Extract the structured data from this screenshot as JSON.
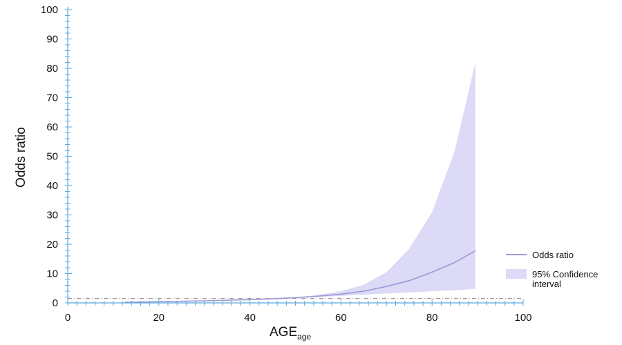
{
  "chart_data": {
    "type": "line",
    "title": "",
    "xlabel": "AGE",
    "xlabel_subscript": "age",
    "ylabel": "Odds ratio",
    "xlim": [
      0,
      100
    ],
    "ylim": [
      0,
      100
    ],
    "x_ticks": [
      0,
      20,
      40,
      60,
      80,
      100
    ],
    "y_ticks": [
      0,
      10,
      20,
      30,
      40,
      50,
      60,
      70,
      80,
      90,
      100
    ],
    "reference_line": 1.5,
    "legend_position": "right",
    "grid": false,
    "series": [
      {
        "name": "Odds ratio",
        "color": "#9b98d8",
        "x": [
          12.5,
          20,
          30,
          40,
          45,
          50,
          55,
          60,
          65,
          70,
          75,
          80,
          85,
          89.5
        ],
        "y": [
          0.2,
          0.4,
          0.7,
          1.1,
          1.4,
          1.8,
          2.3,
          3.0,
          4.0,
          5.6,
          7.6,
          10.5,
          13.8,
          17.8
        ]
      }
    ],
    "confidence_band": {
      "name": "95% Confidence interval",
      "color": "#dcdaf6",
      "x": [
        12.5,
        20,
        30,
        40,
        45,
        50,
        55,
        60,
        65,
        70,
        75,
        80,
        85,
        89.5
      ],
      "lower": [
        0.1,
        0.3,
        0.6,
        1.0,
        1.3,
        1.7,
        2.0,
        2.4,
        2.8,
        3.2,
        3.6,
        4.0,
        4.3,
        4.8
      ],
      "upper": [
        0.4,
        0.6,
        0.9,
        1.3,
        1.6,
        2.0,
        2.7,
        4.0,
        6.2,
        10.5,
        18.5,
        31.0,
        52.0,
        82.0
      ]
    },
    "axis_color": "#5aa9e0",
    "reference_line_color": "#8c8c8c"
  }
}
